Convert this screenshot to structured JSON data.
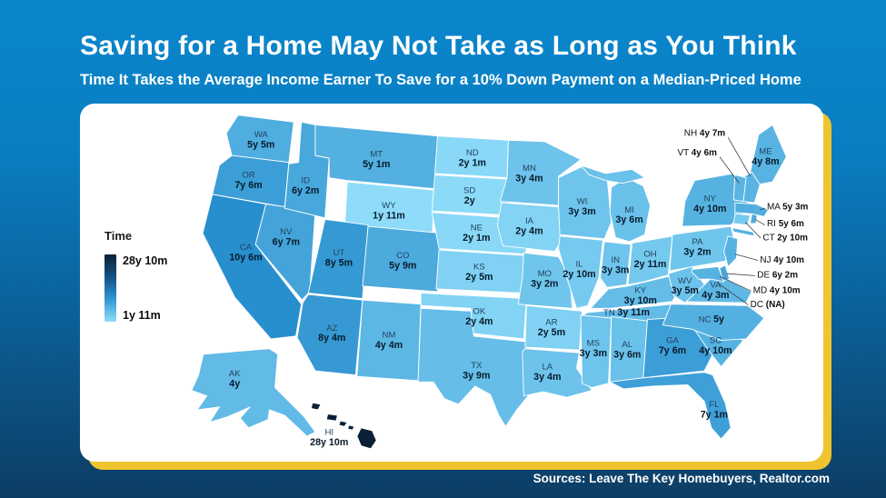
{
  "header": {
    "title": "Saving for a Home May Not Take as Long as You Think",
    "subtitle": "Time It Takes the Average Income Earner To Save for a 10% Down Payment on a Median-Priced Home"
  },
  "legend": {
    "title": "Time",
    "max_label": "28y 10m",
    "min_label": "1y 11m"
  },
  "footer": {
    "sources": "Sources: Leave The Key Homebuyers, Realtor.com"
  },
  "colors": {
    "background_top": "#0a86cc",
    "background_bottom": "#0d3d64",
    "card": "#ffffff",
    "card_accent": "#f0c42f",
    "map_min": "#8edcf9",
    "map_mid": "#1f88ca",
    "map_max": "#092036",
    "title_text": "#ffffff"
  },
  "chart_data": {
    "type": "choropleth-map",
    "title": "Saving for a Home May Not Take as Long as You Think",
    "subtitle": "Time It Takes the Average Income Earner To Save for a 10% Down Payment on a Median-Priced Home",
    "unit": "years (y) and months (m)",
    "legend": {
      "title": "Time",
      "max": "28y 10m",
      "min": "1y 11m"
    },
    "states": [
      {
        "abbr": "WA",
        "value": "5y 5m"
      },
      {
        "abbr": "OR",
        "value": "7y 6m"
      },
      {
        "abbr": "CA",
        "value": "10y 6m"
      },
      {
        "abbr": "NV",
        "value": "6y 7m"
      },
      {
        "abbr": "ID",
        "value": "6y 2m"
      },
      {
        "abbr": "MT",
        "value": "5y 1m"
      },
      {
        "abbr": "WY",
        "value": "1y 11m"
      },
      {
        "abbr": "UT",
        "value": "8y 5m"
      },
      {
        "abbr": "CO",
        "value": "5y 9m"
      },
      {
        "abbr": "AZ",
        "value": "8y 4m"
      },
      {
        "abbr": "NM",
        "value": "4y 4m"
      },
      {
        "abbr": "ND",
        "value": "2y 1m"
      },
      {
        "abbr": "SD",
        "value": "2y"
      },
      {
        "abbr": "NE",
        "value": "2y 1m"
      },
      {
        "abbr": "KS",
        "value": "2y 5m"
      },
      {
        "abbr": "OK",
        "value": "2y 4m"
      },
      {
        "abbr": "TX",
        "value": "3y 9m"
      },
      {
        "abbr": "MN",
        "value": "3y 4m"
      },
      {
        "abbr": "IA",
        "value": "2y 4m"
      },
      {
        "abbr": "MO",
        "value": "3y 2m"
      },
      {
        "abbr": "AR",
        "value": "2y 5m"
      },
      {
        "abbr": "LA",
        "value": "3y 4m"
      },
      {
        "abbr": "WI",
        "value": "3y 3m"
      },
      {
        "abbr": "IL",
        "value": "2y 10m"
      },
      {
        "abbr": "MI",
        "value": "3y 6m"
      },
      {
        "abbr": "IN",
        "value": "3y 3m"
      },
      {
        "abbr": "OH",
        "value": "2y 11m"
      },
      {
        "abbr": "KY",
        "value": "3y 10m"
      },
      {
        "abbr": "TN",
        "value": "3y 11m"
      },
      {
        "abbr": "MS",
        "value": "3y 3m"
      },
      {
        "abbr": "AL",
        "value": "3y 6m"
      },
      {
        "abbr": "GA",
        "value": "7y 6m"
      },
      {
        "abbr": "FL",
        "value": "7y 1m"
      },
      {
        "abbr": "SC",
        "value": "4y 10m"
      },
      {
        "abbr": "NC",
        "value": "5y"
      },
      {
        "abbr": "VA",
        "value": "4y 3m"
      },
      {
        "abbr": "WV",
        "value": "3y 5m"
      },
      {
        "abbr": "PA",
        "value": "3y 2m"
      },
      {
        "abbr": "NY",
        "value": "4y 10m"
      },
      {
        "abbr": "ME",
        "value": "4y 8m"
      },
      {
        "abbr": "NH",
        "value": "4y 7m"
      },
      {
        "abbr": "VT",
        "value": "4y 6m"
      },
      {
        "abbr": "MA",
        "value": "5y 3m"
      },
      {
        "abbr": "RI",
        "value": "5y 6m"
      },
      {
        "abbr": "CT",
        "value": "2y 10m"
      },
      {
        "abbr": "NJ",
        "value": "4y 10m"
      },
      {
        "abbr": "DE",
        "value": "6y 2m"
      },
      {
        "abbr": "MD",
        "value": "4y 10m"
      },
      {
        "abbr": "DC",
        "value": "(NA)"
      },
      {
        "abbr": "AK",
        "value": "4y"
      },
      {
        "abbr": "HI",
        "value": "28y 10m"
      }
    ]
  }
}
